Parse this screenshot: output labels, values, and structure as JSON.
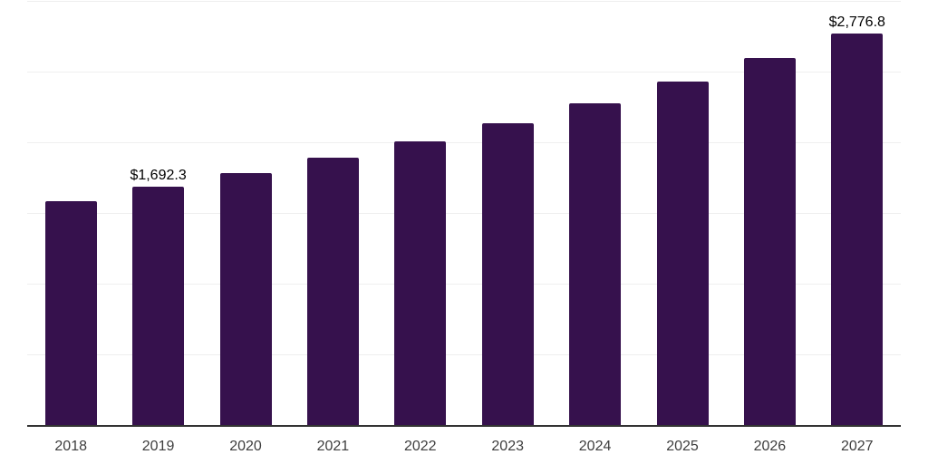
{
  "chart_data": {
    "type": "bar",
    "title": "",
    "xlabel": "",
    "ylabel": "",
    "categories": [
      "2018",
      "2019",
      "2020",
      "2021",
      "2022",
      "2023",
      "2024",
      "2025",
      "2026",
      "2027"
    ],
    "values": [
      1590,
      1692.3,
      1790,
      1900,
      2015,
      2140,
      2280,
      2435,
      2600,
      2776.8
    ],
    "value_labels": [
      "",
      "$1,692.3",
      "",
      "",
      "",
      "",
      "",
      "",
      "",
      "$2,776.8"
    ],
    "ylim": [
      0,
      3000
    ],
    "gridline_step": 500,
    "grid": "horizontal",
    "legend": "none",
    "y_tick_labels_visible": false,
    "colors": {
      "bar": "#36114D",
      "axis_line": "#333333",
      "gridline": "#efefef",
      "category_label": "#3d3d3d",
      "value_label": "#000000",
      "background": "#ffffff"
    }
  }
}
